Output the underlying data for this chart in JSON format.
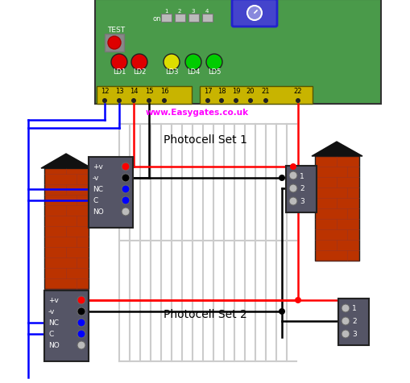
{
  "fig_width": 5.09,
  "fig_height": 4.77,
  "dpi": 100,
  "bg_color": "#ffffff",
  "panel_color": "#4a9a4a",
  "panel_border": "#333333",
  "terminal_color": "#c8b400",
  "blue_box_color": "#4444cc",
  "title1": "Photocell Set 1",
  "title2": "Photocell Set 2",
  "website": "www.Easygates.co.uk",
  "led_colors": [
    "#dd0000",
    "#dd0000",
    "#dddd00",
    "#00cc00",
    "#00cc00"
  ],
  "led_labels": [
    "LD1",
    "LD2",
    "LD3",
    "LD4",
    "LD5"
  ],
  "term_left_labels": [
    "12",
    "13",
    "14",
    "15",
    "16"
  ],
  "term_right_labels": [
    "17",
    "18",
    "19",
    "20",
    "21",
    "22"
  ],
  "photocell_labels": [
    "+v",
    "-v",
    "NC",
    "C",
    "NO"
  ],
  "receiver_labels": [
    "1",
    "2",
    "3"
  ],
  "brick_color": "#bb3300",
  "brick_mortar": "#ccaa88",
  "gate_color": "#cccccc",
  "photocell_box_color": "#555566",
  "lw": 1.8
}
